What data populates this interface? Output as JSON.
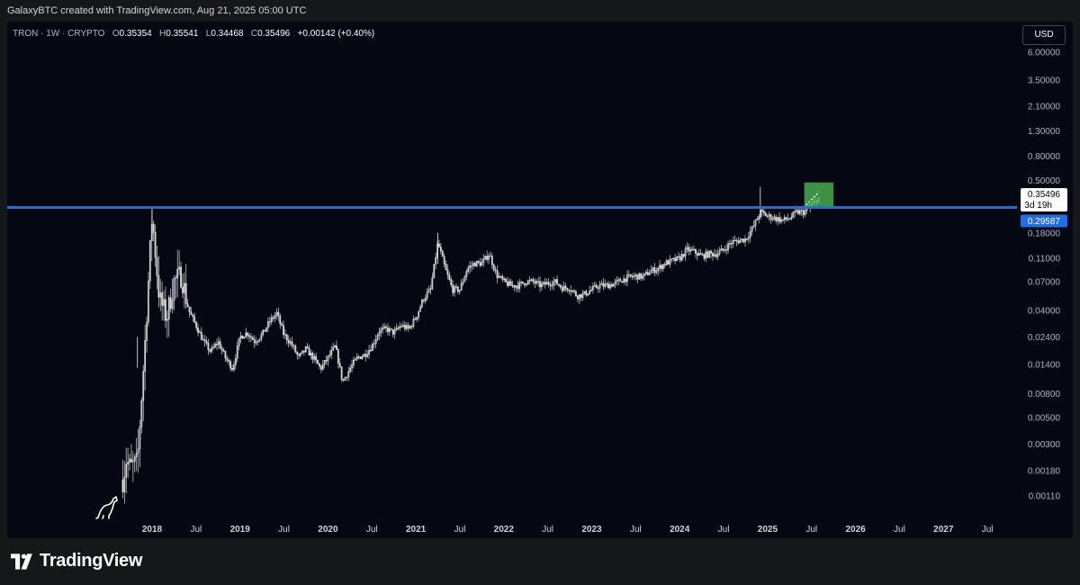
{
  "header": {
    "credit": "GalaxyBTC created with TradingView.com, Aug 21, 2025 05:00 UTC"
  },
  "legend": {
    "symbol": "TRON · 1W · CRYPTO",
    "o_label": "O",
    "open": "0.35354",
    "h_label": "H",
    "high": "0.35541",
    "l_label": "L",
    "low": "0.34468",
    "c_label": "C",
    "close": "0.35496",
    "change": "+0.00142 (+0.40%)"
  },
  "currency_button": "USD",
  "price_labels": {
    "current": "0.35496",
    "countdown": "3d 19h",
    "level": "0.29587"
  },
  "branding": {
    "name": "TradingView"
  },
  "colors": {
    "background": "#050712",
    "candle": "#d9d9d9",
    "level_line": "#1e6ee8",
    "target_box": "#4caf50"
  },
  "chart_data": {
    "type": "candlestick",
    "timeframe": "1W",
    "scale": "log",
    "y_ticks": [
      "6.00000",
      "3.50000",
      "2.10000",
      "1.30000",
      "0.80000",
      "0.50000",
      "0.18000",
      "0.11000",
      "0.07000",
      "0.04000",
      "0.02400",
      "0.01400",
      "0.00800",
      "0.00500",
      "0.00300",
      "0.00180",
      "0.00110"
    ],
    "x_ticks": [
      "2018",
      "Jul",
      "2019",
      "Jul",
      "2020",
      "Jul",
      "2021",
      "Jul",
      "2022",
      "Jul",
      "2023",
      "Jul",
      "2024",
      "Jul",
      "2025",
      "Jul",
      "2026",
      "Jul",
      "2027",
      "Jul"
    ],
    "horizontal_level": 0.29587,
    "target_zone": {
      "x_start": "2025-06",
      "x_end": "2025-10",
      "y_low": 0.29,
      "y_high": 0.48
    },
    "price_path": [
      [
        "2017-09",
        0.0015
      ],
      [
        "2017-09-15",
        0.0022
      ],
      [
        "2017-10",
        0.0019
      ],
      [
        "2017-11",
        0.0021
      ],
      [
        "2017-12",
        0.02
      ],
      [
        "2018-01",
        0.25
      ],
      [
        "2018-02",
        0.05
      ],
      [
        "2018-03",
        0.035
      ],
      [
        "2018-04",
        0.07
      ],
      [
        "2018-05",
        0.08
      ],
      [
        "2018-06",
        0.04
      ],
      [
        "2018-07",
        0.03
      ],
      [
        "2018-08",
        0.022
      ],
      [
        "2018-09",
        0.018
      ],
      [
        "2018-10",
        0.022
      ],
      [
        "2018-11",
        0.016
      ],
      [
        "2018-12",
        0.013
      ],
      [
        "2019-01",
        0.024
      ],
      [
        "2019-02",
        0.026
      ],
      [
        "2019-03",
        0.022
      ],
      [
        "2019-04",
        0.025
      ],
      [
        "2019-05",
        0.032
      ],
      [
        "2019-06",
        0.038
      ],
      [
        "2019-07",
        0.025
      ],
      [
        "2019-08",
        0.021
      ],
      [
        "2019-09",
        0.016
      ],
      [
        "2019-10",
        0.019
      ],
      [
        "2019-11",
        0.016
      ],
      [
        "2019-12",
        0.013
      ],
      [
        "2020-01",
        0.016
      ],
      [
        "2020-02",
        0.02
      ],
      [
        "2020-03",
        0.01
      ],
      [
        "2020-04",
        0.013
      ],
      [
        "2020-05",
        0.016
      ],
      [
        "2020-06",
        0.017
      ],
      [
        "2020-07",
        0.02
      ],
      [
        "2020-08",
        0.027
      ],
      [
        "2020-09",
        0.028
      ],
      [
        "2020-10",
        0.026
      ],
      [
        "2020-11",
        0.03
      ],
      [
        "2020-12",
        0.028
      ],
      [
        "2021-01",
        0.035
      ],
      [
        "2021-02",
        0.05
      ],
      [
        "2021-03",
        0.06
      ],
      [
        "2021-04",
        0.15
      ],
      [
        "2021-05",
        0.09
      ],
      [
        "2021-06",
        0.06
      ],
      [
        "2021-07",
        0.06
      ],
      [
        "2021-08",
        0.09
      ],
      [
        "2021-09",
        0.1
      ],
      [
        "2021-10",
        0.1
      ],
      [
        "2021-11",
        0.12
      ],
      [
        "2021-12",
        0.08
      ],
      [
        "2022-01",
        0.07
      ],
      [
        "2022-02",
        0.065
      ],
      [
        "2022-03",
        0.065
      ],
      [
        "2022-04",
        0.07
      ],
      [
        "2022-05",
        0.07
      ],
      [
        "2022-06",
        0.065
      ],
      [
        "2022-07",
        0.068
      ],
      [
        "2022-08",
        0.07
      ],
      [
        "2022-09",
        0.062
      ],
      [
        "2022-10",
        0.062
      ],
      [
        "2022-11",
        0.053
      ],
      [
        "2022-12",
        0.055
      ],
      [
        "2023-01",
        0.06
      ],
      [
        "2023-02",
        0.065
      ],
      [
        "2023-03",
        0.065
      ],
      [
        "2023-04",
        0.067
      ],
      [
        "2023-05",
        0.072
      ],
      [
        "2023-06",
        0.076
      ],
      [
        "2023-07",
        0.078
      ],
      [
        "2023-08",
        0.077
      ],
      [
        "2023-09",
        0.086
      ],
      [
        "2023-10",
        0.09
      ],
      [
        "2023-11",
        0.1
      ],
      [
        "2023-12",
        0.105
      ],
      [
        "2024-01",
        0.11
      ],
      [
        "2024-02",
        0.13
      ],
      [
        "2024-03",
        0.125
      ],
      [
        "2024-04",
        0.115
      ],
      [
        "2024-05",
        0.12
      ],
      [
        "2024-06",
        0.12
      ],
      [
        "2024-07",
        0.13
      ],
      [
        "2024-08",
        0.15
      ],
      [
        "2024-09",
        0.155
      ],
      [
        "2024-10",
        0.16
      ],
      [
        "2024-11",
        0.2
      ],
      [
        "2024-12",
        0.27
      ],
      [
        "2025-01",
        0.25
      ],
      [
        "2025-02",
        0.24
      ],
      [
        "2025-03",
        0.23
      ],
      [
        "2025-04",
        0.24
      ],
      [
        "2025-05",
        0.27
      ],
      [
        "2025-06",
        0.27
      ],
      [
        "2025-07",
        0.31
      ],
      [
        "2025-08",
        0.35496
      ]
    ]
  }
}
